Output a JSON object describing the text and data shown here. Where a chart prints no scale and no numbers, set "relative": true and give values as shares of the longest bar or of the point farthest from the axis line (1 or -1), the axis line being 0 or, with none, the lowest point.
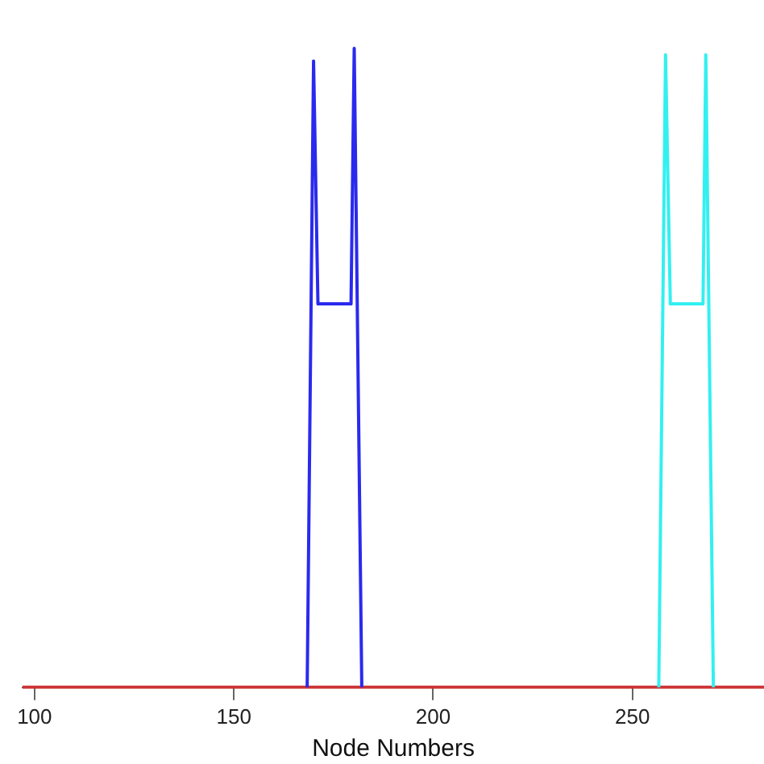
{
  "chart_data": {
    "type": "line",
    "xlabel": "Node Numbers",
    "relative": true,
    "grid": false,
    "legend": false,
    "marker": "none",
    "line_style": "solid",
    "tick_labels": "x",
    "xlim": [
      97,
      283
    ],
    "xticks": [
      100,
      150,
      200,
      250
    ],
    "series": [
      {
        "color": "#2a2aee",
        "x": [
          168.4,
          170.0,
          171.1,
          179.4,
          180.2,
          182.1
        ],
        "values": [
          0,
          0.98,
          0.6,
          0.6,
          1,
          0
        ]
      },
      {
        "color": "#33f0f0",
        "x": [
          256.6,
          258.3,
          259.5,
          267.7,
          268.4,
          270.3
        ],
        "values": [
          0,
          0.99,
          0.6,
          0.6,
          0.99,
          0
        ]
      },
      {
        "color": "#cc3333",
        "x": [
          97,
          283
        ],
        "values": [
          0,
          0
        ]
      }
    ]
  }
}
